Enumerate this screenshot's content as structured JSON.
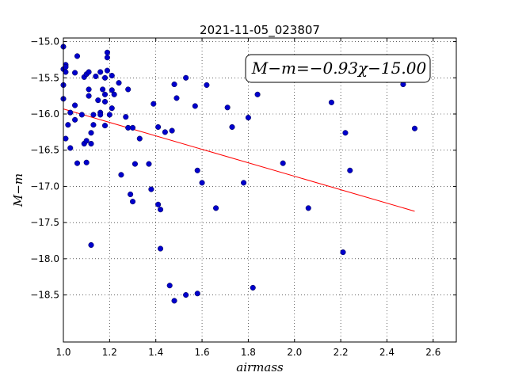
{
  "chart_data": {
    "type": "scatter",
    "title": "2021-11-05_023807",
    "xlabel": "airmass",
    "ylabel": "M−m",
    "xlim": [
      1.0,
      2.7
    ],
    "ylim": [
      -14.95,
      -19.15
    ],
    "y_inverted": true,
    "x_ticks": [
      "1.0",
      "1.2",
      "1.4",
      "1.6",
      "1.8",
      "2.0",
      "2.2",
      "2.4",
      "2.6"
    ],
    "x_tick_values": [
      1.0,
      1.2,
      1.4,
      1.6,
      1.8,
      2.0,
      2.2,
      2.4,
      2.6
    ],
    "y_ticks": [
      "−15.0",
      "−15.5",
      "−16.0",
      "−16.5",
      "−17.0",
      "−17.5",
      "−18.0",
      "−18.5"
    ],
    "y_tick_values": [
      -15.0,
      -15.5,
      -16.0,
      -16.5,
      -17.0,
      -17.5,
      -18.0,
      -18.5
    ],
    "grid": true,
    "annotation": "M−m=−0.93χ−15.00",
    "marker_color": "#0000cc",
    "fit_color": "#ff0000",
    "fit": {
      "slope": -0.93,
      "intercept": -15.0,
      "x_range": [
        1.0,
        2.52
      ]
    },
    "points": [
      [
        1.0,
        -15.07
      ],
      [
        1.0,
        -15.38
      ],
      [
        1.0,
        -15.6
      ],
      [
        1.0,
        -15.79
      ],
      [
        1.01,
        -15.32
      ],
      [
        1.01,
        -15.35
      ],
      [
        1.01,
        -15.42
      ],
      [
        1.01,
        -16.34
      ],
      [
        1.02,
        -16.15
      ],
      [
        1.03,
        -15.98
      ],
      [
        1.03,
        -16.47
      ],
      [
        1.05,
        -15.43
      ],
      [
        1.05,
        -15.88
      ],
      [
        1.05,
        -16.08
      ],
      [
        1.06,
        -15.2
      ],
      [
        1.06,
        -16.68
      ],
      [
        1.08,
        -16.01
      ],
      [
        1.09,
        -15.49
      ],
      [
        1.09,
        -16.41
      ],
      [
        1.1,
        -15.45
      ],
      [
        1.1,
        -16.37
      ],
      [
        1.1,
        -16.67
      ],
      [
        1.11,
        -15.42
      ],
      [
        1.11,
        -15.66
      ],
      [
        1.11,
        -15.75
      ],
      [
        1.12,
        -16.26
      ],
      [
        1.12,
        -16.41
      ],
      [
        1.12,
        -17.81
      ],
      [
        1.13,
        -16.01
      ],
      [
        1.13,
        -16.15
      ],
      [
        1.14,
        -15.48
      ],
      [
        1.15,
        -15.81
      ],
      [
        1.16,
        -15.42
      ],
      [
        1.16,
        -15.98
      ],
      [
        1.16,
        -16.01
      ],
      [
        1.17,
        -15.66
      ],
      [
        1.18,
        -15.5
      ],
      [
        1.18,
        -15.73
      ],
      [
        1.18,
        -15.83
      ],
      [
        1.18,
        -16.16
      ],
      [
        1.19,
        -15.4
      ],
      [
        1.19,
        -15.15
      ],
      [
        1.19,
        -15.22
      ],
      [
        1.2,
        -16.01
      ],
      [
        1.21,
        -15.67
      ],
      [
        1.21,
        -15.92
      ],
      [
        1.21,
        -15.47
      ],
      [
        1.22,
        -15.73
      ],
      [
        1.24,
        -15.57
      ],
      [
        1.25,
        -16.84
      ],
      [
        1.27,
        -16.04
      ],
      [
        1.28,
        -15.66
      ],
      [
        1.28,
        -16.19
      ],
      [
        1.29,
        -17.11
      ],
      [
        1.3,
        -16.19
      ],
      [
        1.3,
        -17.21
      ],
      [
        1.31,
        -16.69
      ],
      [
        1.33,
        -16.34
      ],
      [
        1.37,
        -16.69
      ],
      [
        1.38,
        -17.04
      ],
      [
        1.39,
        -15.86
      ],
      [
        1.41,
        -16.18
      ],
      [
        1.41,
        -17.25
      ],
      [
        1.42,
        -17.32
      ],
      [
        1.42,
        -17.86
      ],
      [
        1.44,
        -16.25
      ],
      [
        1.46,
        -18.37
      ],
      [
        1.47,
        -16.23
      ],
      [
        1.48,
        -15.59
      ],
      [
        1.48,
        -18.58
      ],
      [
        1.49,
        -15.78
      ],
      [
        1.53,
        -15.5
      ],
      [
        1.53,
        -18.5
      ],
      [
        1.57,
        -15.89
      ],
      [
        1.58,
        -16.78
      ],
      [
        1.58,
        -18.48
      ],
      [
        1.6,
        -16.95
      ],
      [
        1.62,
        -15.6
      ],
      [
        1.66,
        -17.3
      ],
      [
        1.71,
        -15.91
      ],
      [
        1.73,
        -16.18
      ],
      [
        1.78,
        -16.95
      ],
      [
        1.8,
        -16.05
      ],
      [
        1.82,
        -18.4
      ],
      [
        1.84,
        -15.73
      ],
      [
        1.95,
        -16.68
      ],
      [
        2.06,
        -17.3
      ],
      [
        2.16,
        -15.84
      ],
      [
        2.21,
        -17.91
      ],
      [
        2.22,
        -16.26
      ],
      [
        2.24,
        -16.78
      ],
      [
        2.47,
        -15.59
      ],
      [
        2.52,
        -16.2
      ]
    ]
  }
}
